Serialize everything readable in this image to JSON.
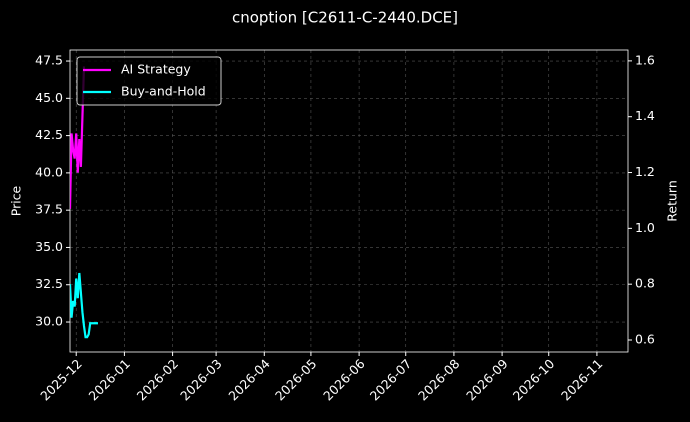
{
  "chart_data": {
    "type": "line",
    "title": "cnoption [C2611-C-2440.DCE]",
    "y_label": "Price",
    "y2_label": "Return",
    "x": [
      "2025-11-27",
      "2025-11-28",
      "2025-11-29",
      "2025-11-30",
      "2025-12-01",
      "2025-12-02",
      "2025-12-03",
      "2025-12-04",
      "2025-12-05",
      "2025-12-06",
      "2025-12-07",
      "2025-12-08",
      "2025-12-09",
      "2025-12-10",
      "2025-12-11",
      "2025-12-12",
      "2025-12-13",
      "2025-12-14",
      "2025-12-15"
    ],
    "series": [
      {
        "name": "AI Strategy",
        "color": "#ff00ff",
        "axis": "y2",
        "values": [
          1.07,
          1.34,
          1.28,
          1.25,
          1.34,
          1.2,
          1.32,
          1.22,
          1.4,
          1.58,
          null,
          null,
          null,
          null,
          null,
          null,
          null,
          null,
          null
        ]
      },
      {
        "name": "Buy-and-Hold",
        "color": "#00ffff",
        "axis": "y2",
        "values": [
          0.8,
          0.68,
          0.74,
          0.72,
          0.82,
          0.75,
          0.84,
          0.77,
          0.7,
          0.65,
          0.61,
          0.61,
          0.62,
          0.66,
          0.66,
          0.66,
          0.66,
          0.66,
          0.66
        ]
      }
    ],
    "xlim": [
      "2025-11-27",
      "2026-11-21"
    ],
    "xticks": [
      "2025-12",
      "2026-01",
      "2026-02",
      "2026-03",
      "2026-04",
      "2026-05",
      "2026-06",
      "2026-07",
      "2026-08",
      "2026-09",
      "2026-10",
      "2026-11"
    ],
    "ylim": [
      27.99,
      48.24
    ],
    "yticks": [
      {
        "value": 30,
        "label": "30.0"
      },
      32.5,
      {
        "value": 35,
        "label": "35.0"
      },
      37.5,
      {
        "value": 40,
        "label": "40.0"
      },
      42.5,
      {
        "value": 45,
        "label": "45.0"
      },
      47.5
    ],
    "y2lim": [
      0.557,
      1.639
    ],
    "y2ticks": [
      0.6,
      0.8,
      {
        "value": 1,
        "label": "1.0"
      },
      1.2,
      1.4,
      1.6
    ],
    "grid": true,
    "legend": "upper left"
  }
}
